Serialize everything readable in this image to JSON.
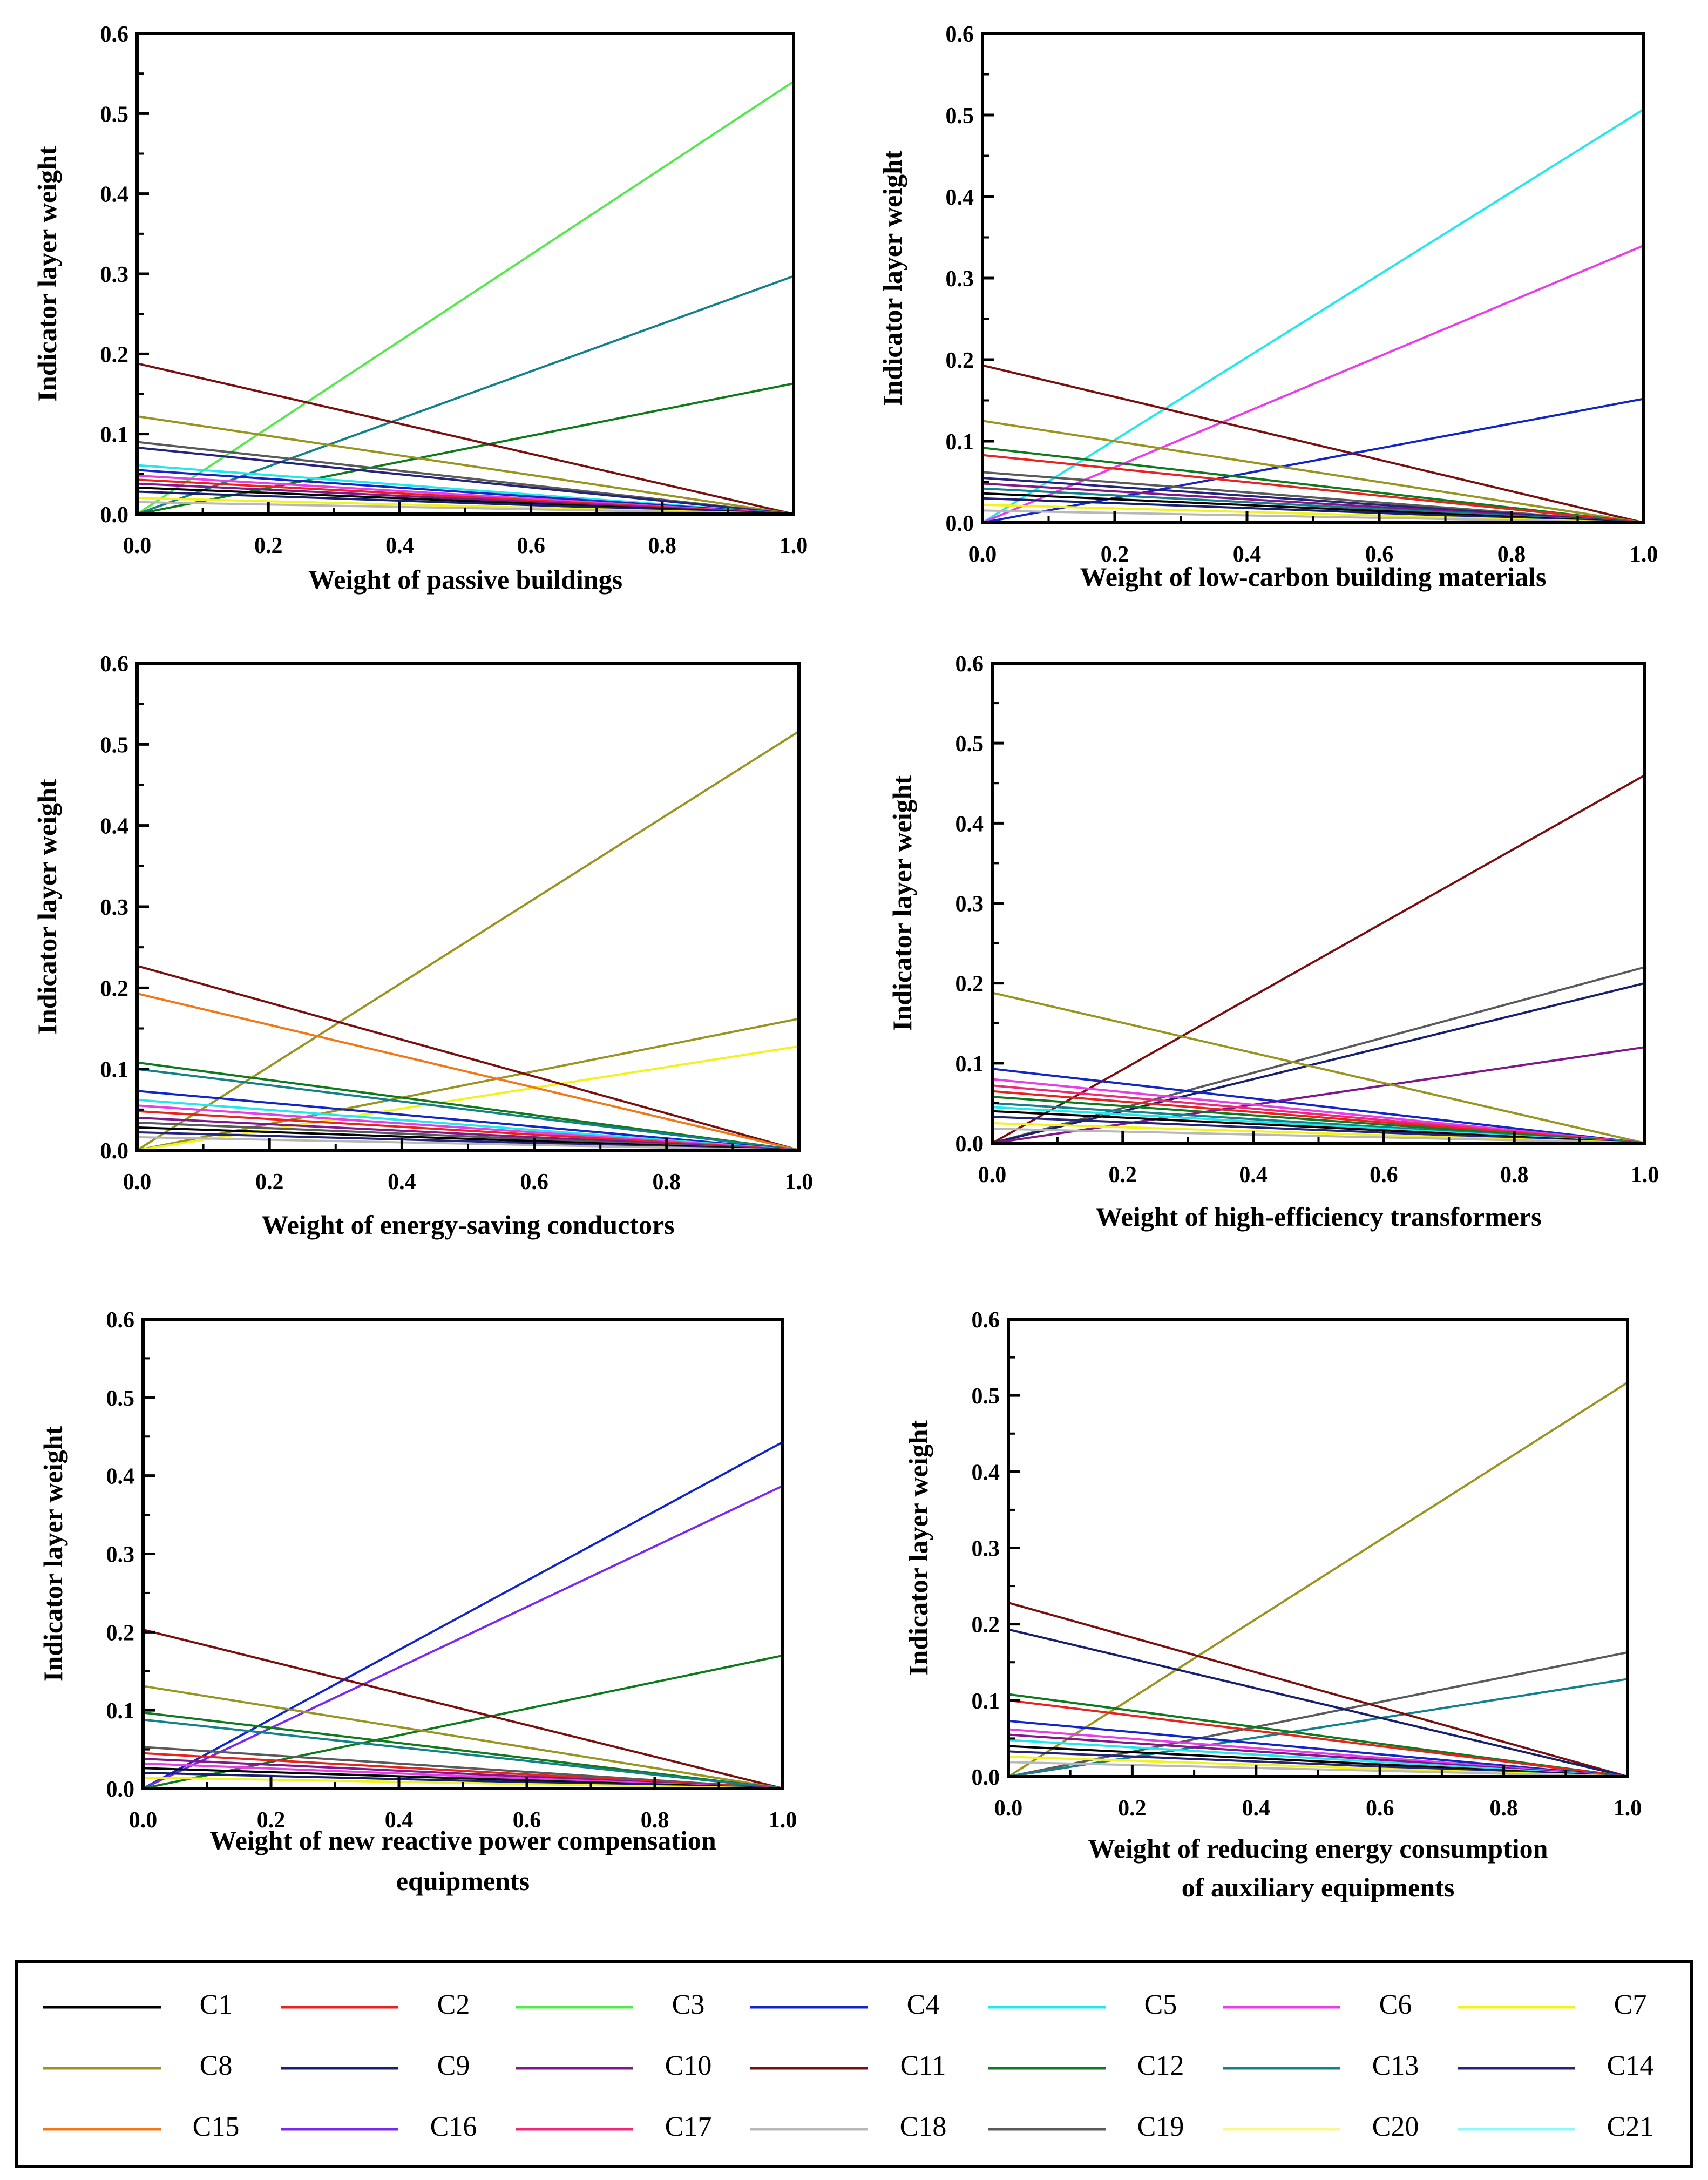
{
  "figure": {
    "ylabel": "Indicator layer weight",
    "y_ticks": [
      "0.0",
      "0.1",
      "0.2",
      "0.3",
      "0.4",
      "0.5",
      "0.6"
    ],
    "x_ticks": [
      "0.0",
      "0.2",
      "0.4",
      "0.6",
      "0.8",
      "1.0"
    ]
  },
  "series_colors": {
    "C1": "#000000",
    "C2": "#e8231f",
    "C3": "#55e84d",
    "C4": "#1226c8",
    "C5": "#22e8ec",
    "C6": "#e83ee8",
    "C7": "#f2f21c",
    "C8": "#999420",
    "C9": "#16206e",
    "C10": "#80188a",
    "C11": "#7a0f10",
    "C12": "#0f7a1b",
    "C13": "#13808a",
    "C14": "#24247a",
    "C15": "#f07818",
    "C16": "#7a2af0",
    "C17": "#f02878",
    "C18": "#b8b8b8",
    "C19": "#5a5a5a",
    "C20": "#f8f890",
    "C21": "#90f8f8"
  },
  "legend": {
    "items": [
      "C1",
      "C2",
      "C3",
      "C4",
      "C5",
      "C6",
      "C7",
      "C8",
      "C9",
      "C10",
      "C11",
      "C12",
      "C13",
      "C14",
      "C15",
      "C16",
      "C17",
      "C18",
      "C19",
      "C20",
      "C21"
    ]
  },
  "chart_data": [
    {
      "type": "line",
      "xlabel_lines": [
        "Weight of passive buildings"
      ],
      "ylabel": "Indicator layer weight",
      "xlim": [
        0,
        1
      ],
      "ylim": [
        0,
        0.6
      ],
      "series": [
        {
          "name": "C3",
          "x": [
            0,
            1
          ],
          "y": [
            0.0,
            0.54
          ]
        },
        {
          "name": "C13",
          "x": [
            0,
            1
          ],
          "y": [
            0.0,
            0.297
          ]
        },
        {
          "name": "C12",
          "x": [
            0,
            1
          ],
          "y": [
            0.0,
            0.163
          ]
        },
        {
          "name": "C11",
          "x": [
            0,
            1
          ],
          "y": [
            0.188,
            0.0
          ]
        },
        {
          "name": "C8",
          "x": [
            0,
            1
          ],
          "y": [
            0.122,
            0.0
          ]
        },
        {
          "name": "C19",
          "x": [
            0,
            1
          ],
          "y": [
            0.09,
            0.0
          ]
        },
        {
          "name": "C14",
          "x": [
            0,
            1
          ],
          "y": [
            0.083,
            0.0
          ]
        },
        {
          "name": "C5",
          "x": [
            0,
            1
          ],
          "y": [
            0.061,
            0.0
          ]
        },
        {
          "name": "C4",
          "x": [
            0,
            1
          ],
          "y": [
            0.055,
            0.0
          ]
        },
        {
          "name": "C6",
          "x": [
            0,
            1
          ],
          "y": [
            0.048,
            0.0
          ]
        },
        {
          "name": "C2",
          "x": [
            0,
            1
          ],
          "y": [
            0.043,
            0.0
          ]
        },
        {
          "name": "C10",
          "x": [
            0,
            1
          ],
          "y": [
            0.038,
            0.0
          ]
        },
        {
          "name": "C1",
          "x": [
            0,
            1
          ],
          "y": [
            0.033,
            0.0
          ]
        },
        {
          "name": "C9",
          "x": [
            0,
            1
          ],
          "y": [
            0.028,
            0.0
          ]
        },
        {
          "name": "C7",
          "x": [
            0,
            1
          ],
          "y": [
            0.02,
            0.0
          ]
        },
        {
          "name": "C18",
          "x": [
            0,
            1
          ],
          "y": [
            0.015,
            0.0
          ]
        }
      ]
    },
    {
      "type": "line",
      "xlabel_lines": [
        "Weight of low-carbon building materials"
      ],
      "ylabel": "Indicator layer weight",
      "xlim": [
        0,
        1
      ],
      "ylim": [
        0,
        0.6
      ],
      "series": [
        {
          "name": "C5",
          "x": [
            0,
            1
          ],
          "y": [
            0.0,
            0.507
          ]
        },
        {
          "name": "C6",
          "x": [
            0,
            1
          ],
          "y": [
            0.0,
            0.34
          ]
        },
        {
          "name": "C4",
          "x": [
            0,
            1
          ],
          "y": [
            0.0,
            0.152
          ]
        },
        {
          "name": "C11",
          "x": [
            0,
            1
          ],
          "y": [
            0.193,
            0.0
          ]
        },
        {
          "name": "C8",
          "x": [
            0,
            1
          ],
          "y": [
            0.125,
            0.0
          ]
        },
        {
          "name": "C12",
          "x": [
            0,
            1
          ],
          "y": [
            0.092,
            0.0
          ]
        },
        {
          "name": "C2",
          "x": [
            0,
            1
          ],
          "y": [
            0.083,
            0.0
          ]
        },
        {
          "name": "C19",
          "x": [
            0,
            1
          ],
          "y": [
            0.062,
            0.0
          ]
        },
        {
          "name": "C14",
          "x": [
            0,
            1
          ],
          "y": [
            0.055,
            0.0
          ]
        },
        {
          "name": "C10",
          "x": [
            0,
            1
          ],
          "y": [
            0.048,
            0.0
          ]
        },
        {
          "name": "C13",
          "x": [
            0,
            1
          ],
          "y": [
            0.042,
            0.0
          ]
        },
        {
          "name": "C1",
          "x": [
            0,
            1
          ],
          "y": [
            0.036,
            0.0
          ]
        },
        {
          "name": "C9",
          "x": [
            0,
            1
          ],
          "y": [
            0.03,
            0.0
          ]
        },
        {
          "name": "C7",
          "x": [
            0,
            1
          ],
          "y": [
            0.022,
            0.0
          ]
        },
        {
          "name": "C18",
          "x": [
            0,
            1
          ],
          "y": [
            0.015,
            0.0
          ]
        }
      ]
    },
    {
      "type": "line",
      "xlabel_lines": [
        "Weight of energy-saving conductors"
      ],
      "ylabel": "Indicator layer weight",
      "xlim": [
        0,
        1
      ],
      "ylim": [
        0,
        0.6
      ],
      "series": [
        {
          "name": "C8",
          "x": [
            0,
            1
          ],
          "y": [
            0.0,
            0.516
          ]
        },
        {
          "name": "C8",
          "x": [
            0,
            1
          ],
          "y": [
            0.0,
            0.162
          ]
        },
        {
          "name": "C7",
          "x": [
            0,
            1
          ],
          "y": [
            0.0,
            0.128
          ]
        },
        {
          "name": "C11",
          "x": [
            0,
            1
          ],
          "y": [
            0.227,
            0.0
          ]
        },
        {
          "name": "C15",
          "x": [
            0,
            1
          ],
          "y": [
            0.193,
            0.0
          ]
        },
        {
          "name": "C12",
          "x": [
            0,
            1
          ],
          "y": [
            0.108,
            0.0
          ]
        },
        {
          "name": "C13",
          "x": [
            0,
            1
          ],
          "y": [
            0.1,
            0.0
          ]
        },
        {
          "name": "C4",
          "x": [
            0,
            1
          ],
          "y": [
            0.073,
            0.0
          ]
        },
        {
          "name": "C5",
          "x": [
            0,
            1
          ],
          "y": [
            0.062,
            0.0
          ]
        },
        {
          "name": "C6",
          "x": [
            0,
            1
          ],
          "y": [
            0.055,
            0.0
          ]
        },
        {
          "name": "C2",
          "x": [
            0,
            1
          ],
          "y": [
            0.048,
            0.0
          ]
        },
        {
          "name": "C10",
          "x": [
            0,
            1
          ],
          "y": [
            0.04,
            0.0
          ]
        },
        {
          "name": "C19",
          "x": [
            0,
            1
          ],
          "y": [
            0.034,
            0.0
          ]
        },
        {
          "name": "C1",
          "x": [
            0,
            1
          ],
          "y": [
            0.028,
            0.0
          ]
        },
        {
          "name": "C14",
          "x": [
            0,
            1
          ],
          "y": [
            0.022,
            0.0
          ]
        },
        {
          "name": "C18",
          "x": [
            0,
            1
          ],
          "y": [
            0.016,
            0.0
          ]
        }
      ]
    },
    {
      "type": "line",
      "xlabel_lines": [
        "Weight of high-efficiency transformers"
      ],
      "ylabel": "Indicator layer weight",
      "xlim": [
        0,
        1
      ],
      "ylim": [
        0,
        0.6
      ],
      "series": [
        {
          "name": "C11",
          "x": [
            0,
            1
          ],
          "y": [
            0.0,
            0.46
          ]
        },
        {
          "name": "C19",
          "x": [
            0,
            1
          ],
          "y": [
            0.0,
            0.22
          ]
        },
        {
          "name": "C9",
          "x": [
            0,
            1
          ],
          "y": [
            0.0,
            0.2
          ]
        },
        {
          "name": "C10",
          "x": [
            0,
            1
          ],
          "y": [
            0.0,
            0.12
          ]
        },
        {
          "name": "C8",
          "x": [
            0,
            1
          ],
          "y": [
            0.188,
            0.0
          ]
        },
        {
          "name": "C4",
          "x": [
            0,
            1
          ],
          "y": [
            0.093,
            0.0
          ]
        },
        {
          "name": "C6",
          "x": [
            0,
            1
          ],
          "y": [
            0.08,
            0.0
          ]
        },
        {
          "name": "C17",
          "x": [
            0,
            1
          ],
          "y": [
            0.072,
            0.0
          ]
        },
        {
          "name": "C2",
          "x": [
            0,
            1
          ],
          "y": [
            0.065,
            0.0
          ]
        },
        {
          "name": "C12",
          "x": [
            0,
            1
          ],
          "y": [
            0.058,
            0.0
          ]
        },
        {
          "name": "C13",
          "x": [
            0,
            1
          ],
          "y": [
            0.05,
            0.0
          ]
        },
        {
          "name": "C5",
          "x": [
            0,
            1
          ],
          "y": [
            0.045,
            0.0
          ]
        },
        {
          "name": "C1",
          "x": [
            0,
            1
          ],
          "y": [
            0.04,
            0.0
          ]
        },
        {
          "name": "C14",
          "x": [
            0,
            1
          ],
          "y": [
            0.033,
            0.0
          ]
        },
        {
          "name": "C7",
          "x": [
            0,
            1
          ],
          "y": [
            0.025,
            0.0
          ]
        },
        {
          "name": "C18",
          "x": [
            0,
            1
          ],
          "y": [
            0.018,
            0.0
          ]
        }
      ]
    },
    {
      "type": "line",
      "xlabel_lines": [
        "Weight of new reactive power compensation",
        "equipments"
      ],
      "ylabel": "Indicator layer weight",
      "xlim": [
        0,
        1
      ],
      "ylim": [
        0,
        0.6
      ],
      "series": [
        {
          "name": "C4",
          "x": [
            0,
            1
          ],
          "y": [
            0.0,
            0.443
          ]
        },
        {
          "name": "C16",
          "x": [
            0,
            1
          ],
          "y": [
            0.0,
            0.387
          ]
        },
        {
          "name": "C12",
          "x": [
            0,
            1
          ],
          "y": [
            0.0,
            0.17
          ]
        },
        {
          "name": "C11",
          "x": [
            0,
            1
          ],
          "y": [
            0.203,
            0.0
          ]
        },
        {
          "name": "C8",
          "x": [
            0,
            1
          ],
          "y": [
            0.131,
            0.0
          ]
        },
        {
          "name": "C12",
          "x": [
            0,
            1
          ],
          "y": [
            0.097,
            0.0
          ]
        },
        {
          "name": "C13",
          "x": [
            0,
            1
          ],
          "y": [
            0.088,
            0.0
          ]
        },
        {
          "name": "C19",
          "x": [
            0,
            1
          ],
          "y": [
            0.053,
            0.0
          ]
        },
        {
          "name": "C2",
          "x": [
            0,
            1
          ],
          "y": [
            0.045,
            0.0
          ]
        },
        {
          "name": "C10",
          "x": [
            0,
            1
          ],
          "y": [
            0.038,
            0.0
          ]
        },
        {
          "name": "C6",
          "x": [
            0,
            1
          ],
          "y": [
            0.032,
            0.0
          ]
        },
        {
          "name": "C1",
          "x": [
            0,
            1
          ],
          "y": [
            0.026,
            0.0
          ]
        },
        {
          "name": "C9",
          "x": [
            0,
            1
          ],
          "y": [
            0.02,
            0.0
          ]
        },
        {
          "name": "C7",
          "x": [
            0,
            1
          ],
          "y": [
            0.014,
            0.0
          ]
        }
      ]
    },
    {
      "type": "line",
      "xlabel_lines": [
        "Weight of reducing energy consumption",
        "of auxiliary equipments"
      ],
      "ylabel": "Indicator layer weight",
      "xlim": [
        0,
        1
      ],
      "ylim": [
        0,
        0.6
      ],
      "series": [
        {
          "name": "C8",
          "x": [
            0,
            1
          ],
          "y": [
            0.0,
            0.517
          ]
        },
        {
          "name": "C19",
          "x": [
            0,
            1
          ],
          "y": [
            0.0,
            0.163
          ]
        },
        {
          "name": "C13",
          "x": [
            0,
            1
          ],
          "y": [
            0.0,
            0.128
          ]
        },
        {
          "name": "C11",
          "x": [
            0,
            1
          ],
          "y": [
            0.228,
            0.0
          ]
        },
        {
          "name": "C9",
          "x": [
            0,
            1
          ],
          "y": [
            0.193,
            0.0
          ]
        },
        {
          "name": "C12",
          "x": [
            0,
            1
          ],
          "y": [
            0.108,
            0.0
          ]
        },
        {
          "name": "C2",
          "x": [
            0,
            1
          ],
          "y": [
            0.1,
            0.0
          ]
        },
        {
          "name": "C4",
          "x": [
            0,
            1
          ],
          "y": [
            0.073,
            0.0
          ]
        },
        {
          "name": "C6",
          "x": [
            0,
            1
          ],
          "y": [
            0.062,
            0.0
          ]
        },
        {
          "name": "C10",
          "x": [
            0,
            1
          ],
          "y": [
            0.055,
            0.0
          ]
        },
        {
          "name": "C5",
          "x": [
            0,
            1
          ],
          "y": [
            0.048,
            0.0
          ]
        },
        {
          "name": "C1",
          "x": [
            0,
            1
          ],
          "y": [
            0.04,
            0.0
          ]
        },
        {
          "name": "C14",
          "x": [
            0,
            1
          ],
          "y": [
            0.033,
            0.0
          ]
        },
        {
          "name": "C7",
          "x": [
            0,
            1
          ],
          "y": [
            0.026,
            0.0
          ]
        },
        {
          "name": "C18",
          "x": [
            0,
            1
          ],
          "y": [
            0.019,
            0.0
          ]
        }
      ]
    }
  ]
}
